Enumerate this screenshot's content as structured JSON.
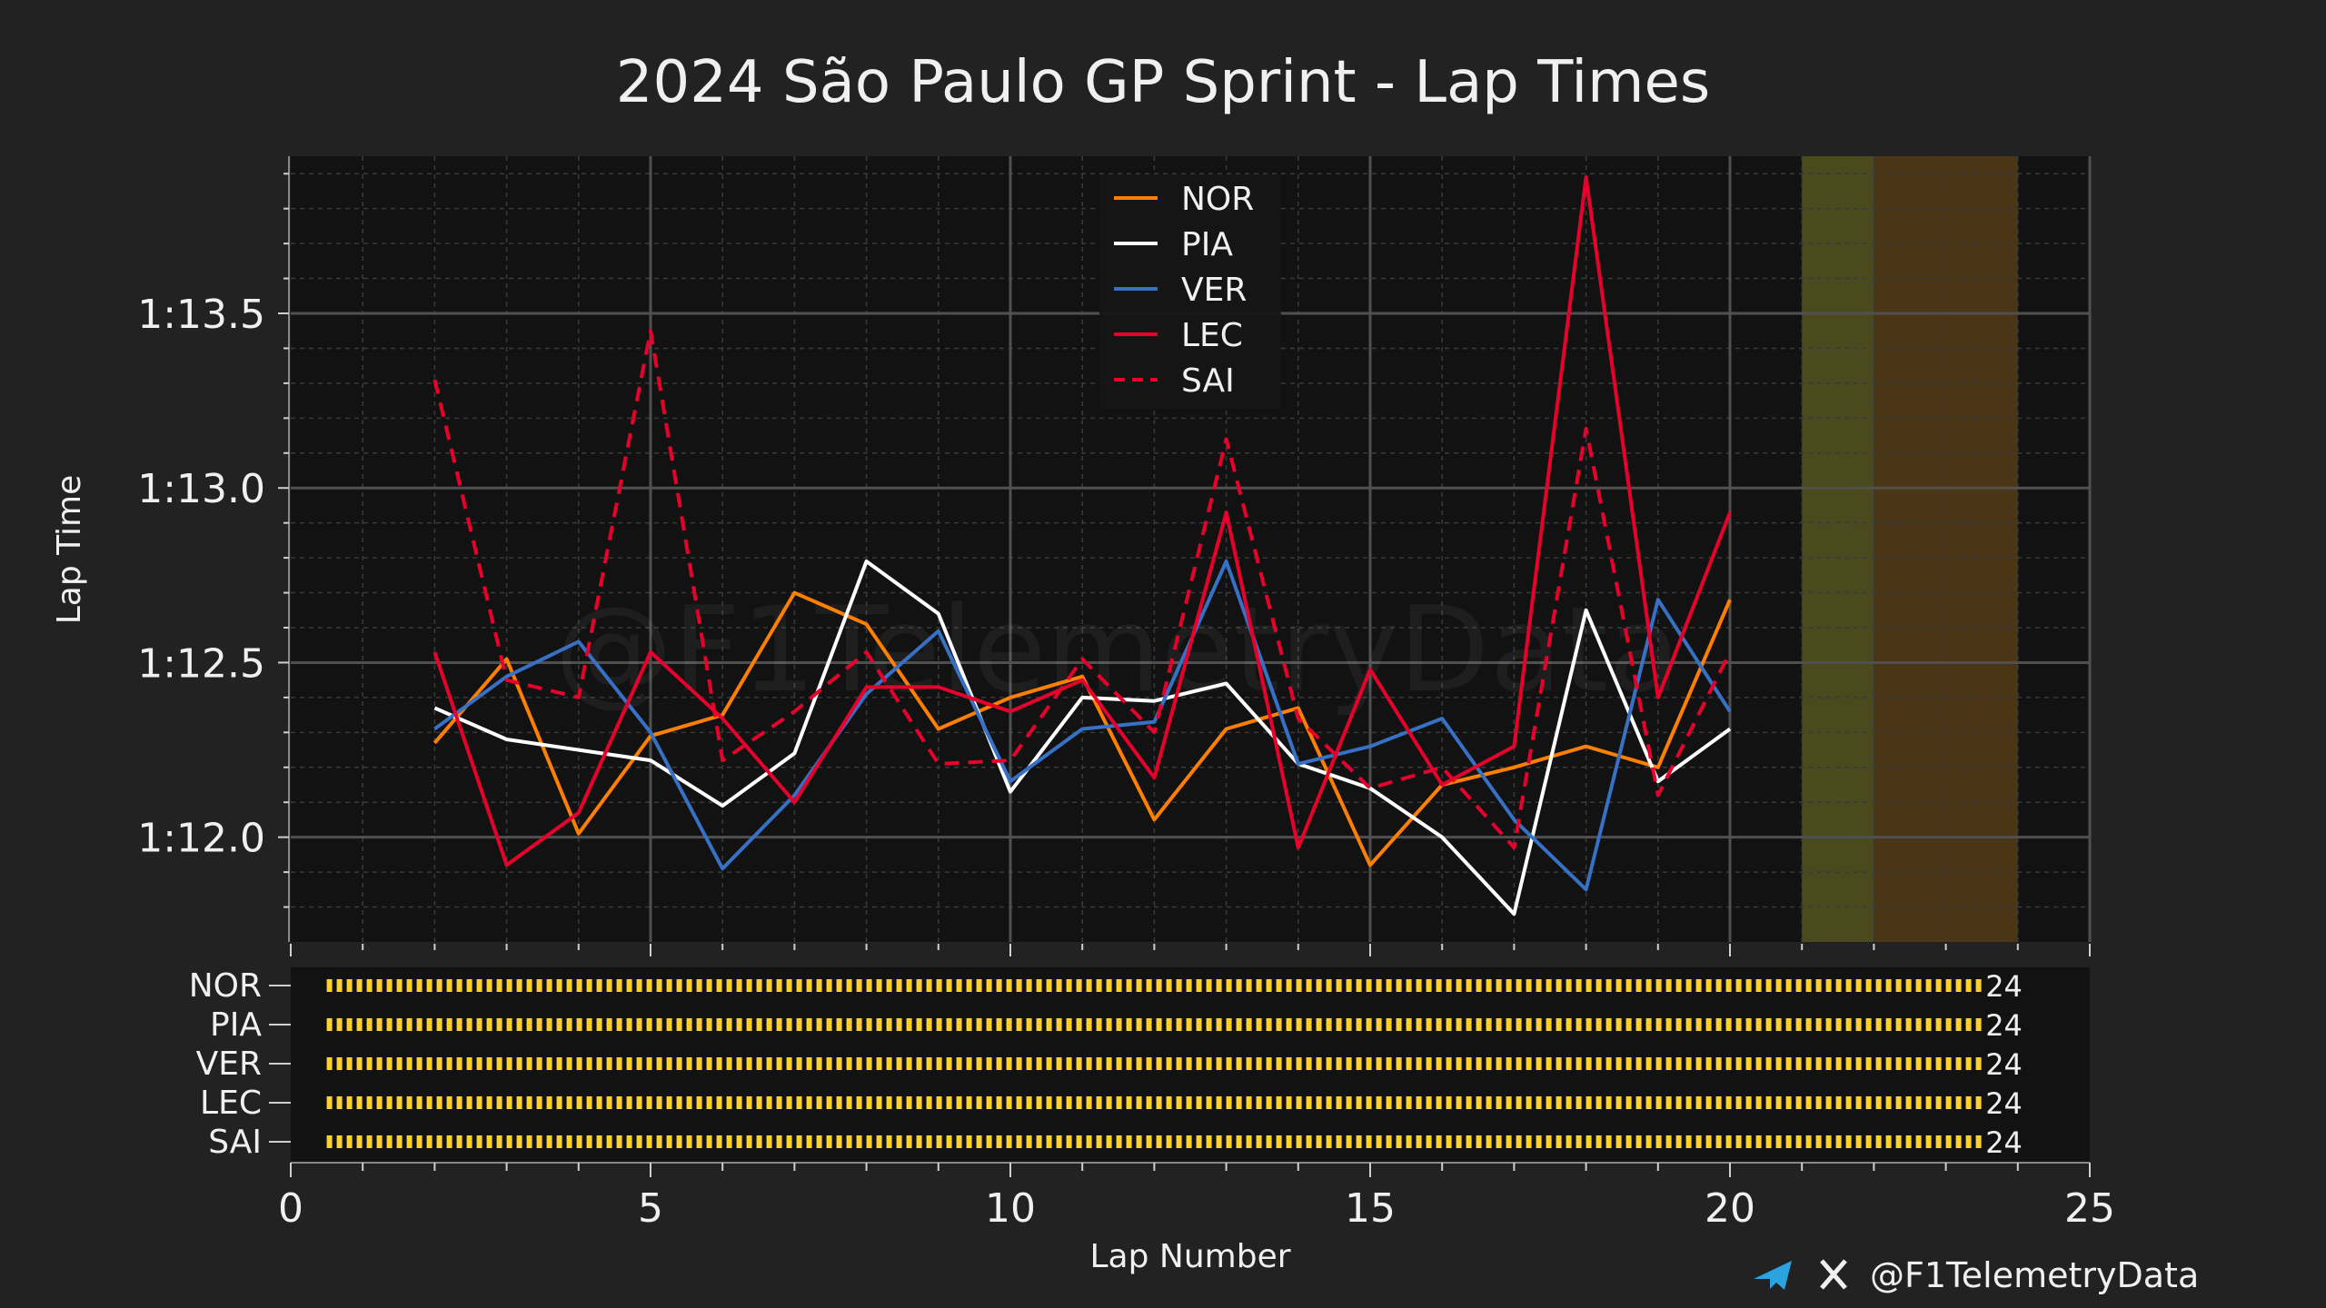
{
  "chart_data": {
    "type": "line",
    "title": "2024 São Paulo GP Sprint - Lap Times",
    "xlabel": "Lap Number",
    "ylabel": "Lap Time",
    "xlim": [
      0,
      25
    ],
    "ylim": [
      71.7,
      73.95
    ],
    "x_ticks": [
      {
        "value": 0,
        "label": "0"
      },
      {
        "value": 5,
        "label": "5"
      },
      {
        "value": 10,
        "label": "10"
      },
      {
        "value": 15,
        "label": "15"
      },
      {
        "value": 20,
        "label": "20"
      },
      {
        "value": 25,
        "label": "25"
      }
    ],
    "y_ticks": [
      {
        "value": 72.0,
        "label": "1:12.0"
      },
      {
        "value": 72.5,
        "label": "1:12.5"
      },
      {
        "value": 73.0,
        "label": "1:13.0"
      },
      {
        "value": 73.5,
        "label": "1:13.5"
      }
    ],
    "x": [
      2,
      3,
      4,
      5,
      6,
      7,
      8,
      9,
      10,
      11,
      12,
      13,
      14,
      15,
      16,
      17,
      18,
      19,
      20
    ],
    "series": [
      {
        "name": "NOR",
        "color": "#ff8000",
        "dash": false,
        "values": [
          72.27,
          72.51,
          72.01,
          72.29,
          72.35,
          72.7,
          72.61,
          72.31,
          72.4,
          72.46,
          72.05,
          72.31,
          72.37,
          71.92,
          72.15,
          72.2,
          72.26,
          72.2,
          72.68
        ]
      },
      {
        "name": "PIA",
        "color": "#ffffff",
        "dash": false,
        "values": [
          72.37,
          72.28,
          72.25,
          72.22,
          72.09,
          72.24,
          72.79,
          72.64,
          72.13,
          72.4,
          72.39,
          72.44,
          72.21,
          72.14,
          72.0,
          71.78,
          72.65,
          72.16,
          72.31
        ]
      },
      {
        "name": "VER",
        "color": "#3671c6",
        "dash": false,
        "values": [
          72.31,
          72.46,
          72.56,
          72.3,
          71.91,
          72.12,
          72.41,
          72.59,
          72.16,
          72.31,
          72.33,
          72.79,
          72.21,
          72.26,
          72.34,
          72.05,
          71.85,
          72.68,
          72.36
        ]
      },
      {
        "name": "LEC",
        "color": "#e8002d",
        "dash": false,
        "values": [
          72.53,
          71.92,
          72.07,
          72.53,
          72.34,
          72.1,
          72.43,
          72.43,
          72.36,
          72.45,
          72.17,
          72.93,
          71.97,
          72.48,
          72.15,
          72.26,
          73.89,
          72.4,
          72.93
        ]
      },
      {
        "name": "SAI",
        "color": "#e8002d",
        "dash": true,
        "values": [
          73.31,
          72.45,
          72.4,
          73.45,
          72.22,
          72.36,
          72.53,
          72.21,
          72.22,
          72.51,
          72.3,
          73.14,
          72.34,
          72.14,
          72.2,
          71.97,
          73.17,
          72.12,
          72.53
        ]
      }
    ],
    "flag_bands": [
      {
        "from": 21,
        "to": 22,
        "color": "#4a4a1e",
        "meaning": "yellow"
      },
      {
        "from": 22,
        "to": 24,
        "color": "#4a3516",
        "meaning": "orange"
      }
    ],
    "tyre_strip": {
      "drivers": [
        "NOR",
        "PIA",
        "VER",
        "LEC",
        "SAI"
      ],
      "stint_start": 0.5,
      "stint_end": 23.5,
      "stint_laps": [
        "24",
        "24",
        "24",
        "24",
        "24"
      ],
      "compound_color": "#ffd12e"
    },
    "legend_position": "top-center",
    "grid": true
  },
  "watermark": "@F1TelemetryData",
  "footer": {
    "handle": "@F1TelemetryData",
    "telegram_icon": "telegram-icon",
    "x_icon": "x-logo-icon"
  }
}
